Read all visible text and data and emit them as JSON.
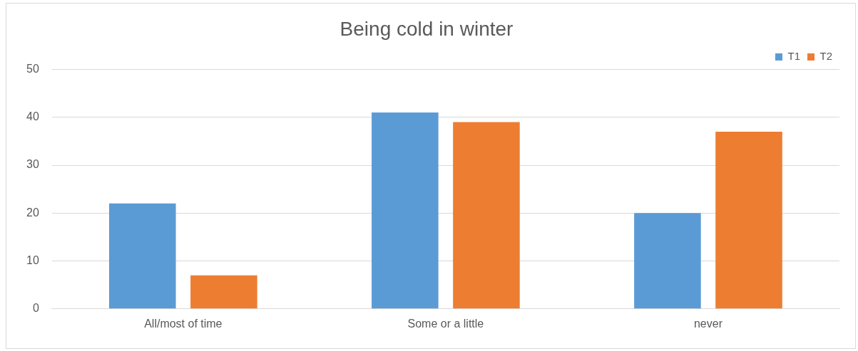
{
  "chart_data": {
    "type": "bar",
    "title": "Being cold in winter",
    "categories": [
      "All/most of time",
      "Some or a little",
      "never"
    ],
    "series": [
      {
        "name": "T1",
        "color": "#5b9bd5",
        "values": [
          22,
          41,
          20
        ]
      },
      {
        "name": "T2",
        "color": "#ed7d31",
        "values": [
          7,
          39,
          37
        ]
      }
    ],
    "ylim": [
      0,
      50
    ],
    "yticks": [
      0,
      10,
      20,
      30,
      40,
      50
    ],
    "grid": "y",
    "legend": "top right"
  }
}
